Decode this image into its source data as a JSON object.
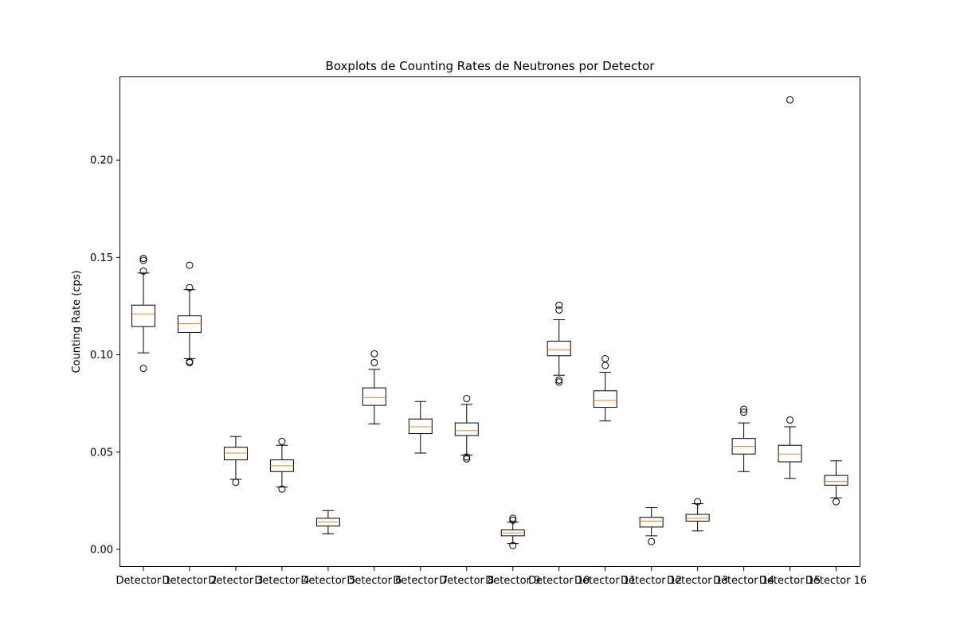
{
  "chart_data": {
    "type": "boxplot",
    "title": "Boxplots de Counting Rates de Neutrones por Detector",
    "xlabel": "",
    "ylabel": "Counting Rate (cps)",
    "ylim": [
      -0.009,
      0.243
    ],
    "y_ticks": [
      "0.00",
      "0.05",
      "0.10",
      "0.15",
      "0.20"
    ],
    "y_tick_values": [
      0.0,
      0.05,
      0.1,
      0.15,
      0.2
    ],
    "grid": false,
    "legend": "none",
    "colors": {
      "box": "#000000",
      "median": "#ff7f0e",
      "background": "#ffffff"
    },
    "categories": [
      "Detector 1",
      "Detector 2",
      "Detector 3",
      "Detector 4",
      "Detector 5",
      "Detector 6",
      "Detector 7",
      "Detector 8",
      "Detector 9",
      "Detector 10",
      "Detector 11",
      "Detector 12",
      "Detector 13",
      "Detector 14",
      "Detector 15",
      "Detector 16"
    ],
    "boxes": [
      {
        "whislo": 0.101,
        "q1": 0.1145,
        "med": 0.121,
        "q3": 0.1255,
        "whishi": 0.142,
        "fliers": [
          0.093,
          0.143,
          0.1485,
          0.1495
        ]
      },
      {
        "whislo": 0.098,
        "q1": 0.1115,
        "med": 0.116,
        "q3": 0.12,
        "whishi": 0.1335,
        "fliers": [
          0.096,
          0.0965,
          0.1345,
          0.146
        ]
      },
      {
        "whislo": 0.036,
        "q1": 0.046,
        "med": 0.0495,
        "q3": 0.0525,
        "whishi": 0.058,
        "fliers": [
          0.0345
        ]
      },
      {
        "whislo": 0.032,
        "q1": 0.04,
        "med": 0.043,
        "q3": 0.046,
        "whishi": 0.0535,
        "fliers": [
          0.031,
          0.0555
        ]
      },
      {
        "whislo": 0.008,
        "q1": 0.012,
        "med": 0.014,
        "q3": 0.016,
        "whishi": 0.02,
        "fliers": []
      },
      {
        "whislo": 0.0645,
        "q1": 0.074,
        "med": 0.078,
        "q3": 0.083,
        "whishi": 0.0925,
        "fliers": [
          0.096,
          0.1005
        ]
      },
      {
        "whislo": 0.0495,
        "q1": 0.0595,
        "med": 0.063,
        "q3": 0.067,
        "whishi": 0.076,
        "fliers": []
      },
      {
        "whislo": 0.0485,
        "q1": 0.0585,
        "med": 0.061,
        "q3": 0.065,
        "whishi": 0.0745,
        "fliers": [
          0.0465,
          0.0475,
          0.0775
        ]
      },
      {
        "whislo": 0.003,
        "q1": 0.007,
        "med": 0.0085,
        "q3": 0.01,
        "whishi": 0.014,
        "fliers": [
          0.002,
          0.015,
          0.016
        ]
      },
      {
        "whislo": 0.0895,
        "q1": 0.0995,
        "med": 0.1025,
        "q3": 0.107,
        "whishi": 0.118,
        "fliers": [
          0.086,
          0.087,
          0.123,
          0.1255
        ]
      },
      {
        "whislo": 0.066,
        "q1": 0.073,
        "med": 0.0765,
        "q3": 0.0815,
        "whishi": 0.091,
        "fliers": [
          0.0945,
          0.098
        ]
      },
      {
        "whislo": 0.007,
        "q1": 0.0115,
        "med": 0.0145,
        "q3": 0.0165,
        "whishi": 0.0215,
        "fliers": [
          0.004
        ]
      },
      {
        "whislo": 0.0095,
        "q1": 0.0145,
        "med": 0.016,
        "q3": 0.018,
        "whishi": 0.0235,
        "fliers": [
          0.0245
        ]
      },
      {
        "whislo": 0.04,
        "q1": 0.049,
        "med": 0.053,
        "q3": 0.057,
        "whishi": 0.065,
        "fliers": [
          0.0705,
          0.072
        ]
      },
      {
        "whislo": 0.0365,
        "q1": 0.045,
        "med": 0.049,
        "q3": 0.0535,
        "whishi": 0.063,
        "fliers": [
          0.0665,
          0.231
        ]
      },
      {
        "whislo": 0.0265,
        "q1": 0.033,
        "med": 0.035,
        "q3": 0.038,
        "whishi": 0.0455,
        "fliers": [
          0.0245
        ]
      }
    ]
  }
}
